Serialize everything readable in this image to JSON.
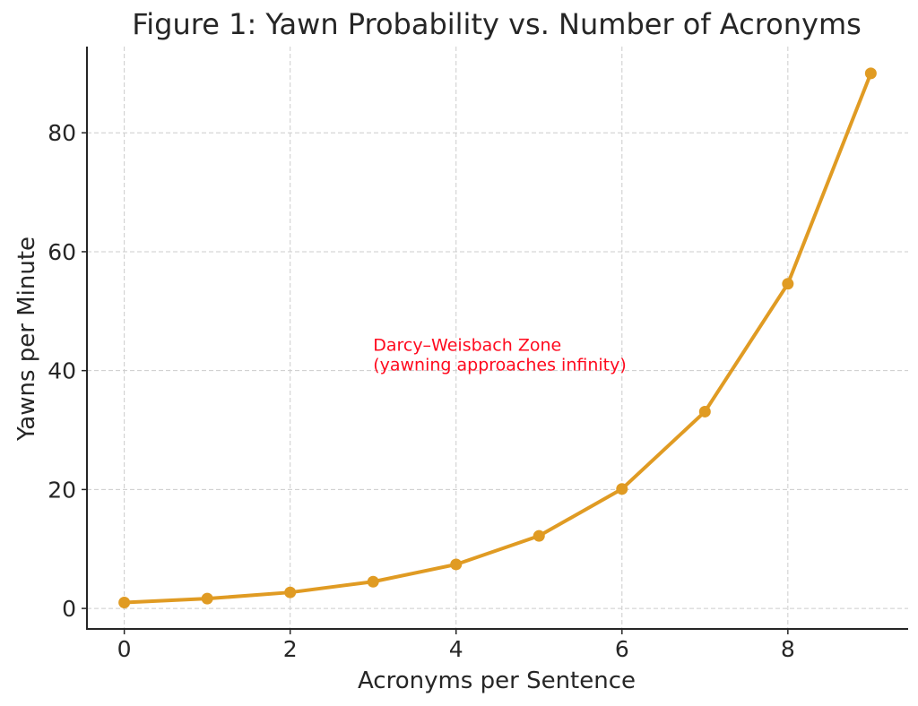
{
  "chart_data": {
    "type": "line",
    "title": "Figure 1: Yawn Probability vs. Number of Acronyms",
    "xlabel": "Acronyms per Sentence",
    "ylabel": "Yawns per Minute",
    "x": [
      0,
      1,
      2,
      3,
      4,
      5,
      6,
      7,
      8,
      9
    ],
    "series": [
      {
        "values": [
          1.0,
          1.65,
          2.7,
          4.5,
          7.4,
          12.2,
          20.1,
          33.1,
          54.6,
          90.0
        ],
        "color": "#e09b23",
        "marker": "circle"
      }
    ],
    "xlim": [
      -0.45,
      9.45
    ],
    "ylim": [
      -3.45,
      94.5
    ],
    "xticks": [
      0,
      2,
      4,
      6,
      8
    ],
    "yticks": [
      0,
      20,
      40,
      60,
      80
    ],
    "grid": true,
    "annotation": {
      "lines": [
        "Darcy–Weisbach Zone",
        "(yawning approaches infinity)"
      ],
      "x": 3,
      "y": 40,
      "color": "#ff0a1e"
    }
  }
}
